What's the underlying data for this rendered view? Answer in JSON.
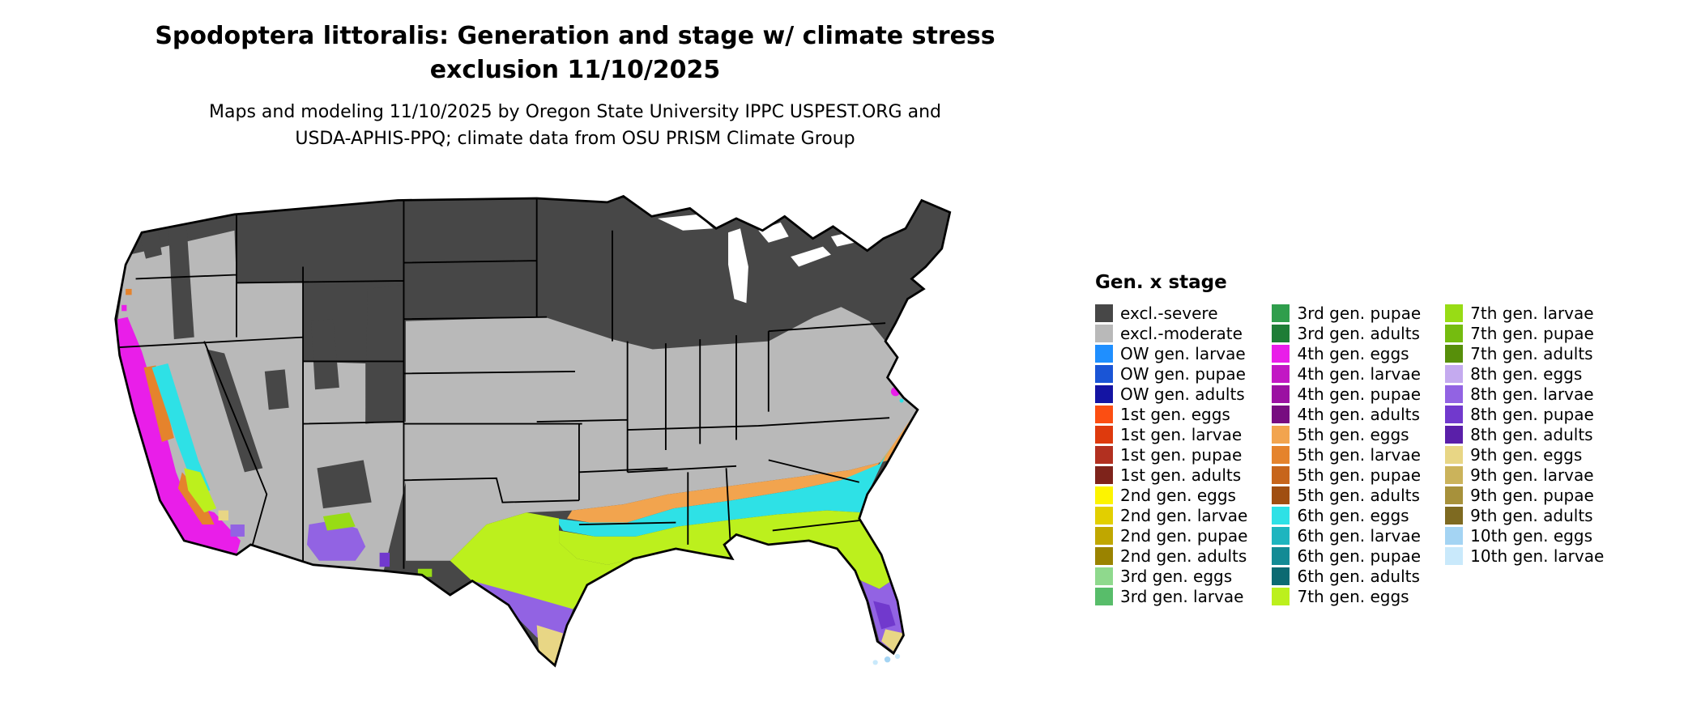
{
  "title": {
    "line1": "Spodoptera littoralis: Generation and stage w/ climate stress",
    "line2": "exclusion 11/10/2025"
  },
  "subtitle": {
    "line1": "Maps and modeling 11/10/2025 by Oregon State University IPPC USPEST.ORG and",
    "line2": "USDA-APHIS-PPQ; climate data from OSU PRISM Climate Group"
  },
  "legend": {
    "title": "Gen. x stage",
    "columns": [
      [
        {
          "label": "excl.-severe",
          "color": "excl_severe"
        },
        {
          "label": "excl.-moderate",
          "color": "excl_moderate"
        },
        {
          "label": "OW gen. larvae",
          "color": "ow_larvae"
        },
        {
          "label": "OW gen. pupae",
          "color": "ow_pupae"
        },
        {
          "label": "OW gen. adults",
          "color": "ow_adults"
        },
        {
          "label": "1st gen. eggs",
          "color": "g1_eggs"
        },
        {
          "label": "1st gen. larvae",
          "color": "g1_larvae"
        },
        {
          "label": "1st gen. pupae",
          "color": "g1_pupae"
        },
        {
          "label": "1st gen. adults",
          "color": "g1_adults"
        },
        {
          "label": "2nd gen. eggs",
          "color": "g2_eggs"
        },
        {
          "label": "2nd gen. larvae",
          "color": "g2_larvae"
        },
        {
          "label": "2nd gen. pupae",
          "color": "g2_pupae"
        },
        {
          "label": "2nd gen. adults",
          "color": "g2_adults"
        },
        {
          "label": "3rd gen. eggs",
          "color": "g3_eggs"
        },
        {
          "label": "3rd gen. larvae",
          "color": "g3_larvae"
        }
      ],
      [
        {
          "label": "3rd gen. pupae",
          "color": "g3_pupae"
        },
        {
          "label": "3rd gen. adults",
          "color": "g3_adults"
        },
        {
          "label": "4th gen. eggs",
          "color": "g4_eggs"
        },
        {
          "label": "4th gen. larvae",
          "color": "g4_larvae"
        },
        {
          "label": "4th gen. pupae",
          "color": "g4_pupae"
        },
        {
          "label": "4th gen. adults",
          "color": "g4_adults"
        },
        {
          "label": "5th gen. eggs",
          "color": "g5_eggs"
        },
        {
          "label": "5th gen. larvae",
          "color": "g5_larvae"
        },
        {
          "label": "5th gen. pupae",
          "color": "g5_pupae"
        },
        {
          "label": "5th gen. adults",
          "color": "g5_adults"
        },
        {
          "label": "6th gen. eggs",
          "color": "g6_eggs"
        },
        {
          "label": "6th gen. larvae",
          "color": "g6_larvae"
        },
        {
          "label": "6th gen. pupae",
          "color": "g6_pupae"
        },
        {
          "label": "6th gen. adults",
          "color": "g6_adults"
        },
        {
          "label": "7th gen. eggs",
          "color": "g7_eggs"
        }
      ],
      [
        {
          "label": "7th gen. larvae",
          "color": "g7_larvae"
        },
        {
          "label": "7th gen. pupae",
          "color": "g7_pupae"
        },
        {
          "label": "7th gen. adults",
          "color": "g7_adults"
        },
        {
          "label": "8th gen. eggs",
          "color": "g8_eggs"
        },
        {
          "label": "8th gen. larvae",
          "color": "g8_larvae"
        },
        {
          "label": "8th gen. pupae",
          "color": "g8_pupae"
        },
        {
          "label": "8th gen. adults",
          "color": "g8_adults"
        },
        {
          "label": "9th gen. eggs",
          "color": "g9_eggs"
        },
        {
          "label": "9th gen. larvae",
          "color": "g9_larvae"
        },
        {
          "label": "9th gen. pupae",
          "color": "g9_pupae"
        },
        {
          "label": "9th gen. adults",
          "color": "g9_adults"
        },
        {
          "label": "10th gen. eggs",
          "color": "g10_eggs"
        },
        {
          "label": "10th gen. larvae",
          "color": "g10_larvae"
        }
      ]
    ]
  },
  "colors": {
    "excl_severe": "#474747",
    "excl_moderate": "#b9b9b9",
    "ow_larvae": "#1f8fff",
    "ow_pupae": "#1a55d6",
    "ow_adults": "#1414a3",
    "g1_eggs": "#fc4e12",
    "g1_larvae": "#de3a0d",
    "g1_pupae": "#b23020",
    "g1_adults": "#7e231b",
    "g2_eggs": "#fdf400",
    "g2_larvae": "#e2cf00",
    "g2_pupae": "#c0a700",
    "g2_adults": "#9a8300",
    "g3_eggs": "#8fd98d",
    "g3_larvae": "#58bd6a",
    "g3_pupae": "#2f9e4c",
    "g3_adults": "#1e7d36",
    "g4_eggs": "#e91ee9",
    "g4_larvae": "#c217c4",
    "g4_pupae": "#9b11a2",
    "g4_adults": "#770d80",
    "g5_eggs": "#f2a44e",
    "g5_larvae": "#e5832c",
    "g5_pupae": "#c7651b",
    "g5_adults": "#a04e11",
    "g6_eggs": "#2ee1e6",
    "g6_larvae": "#1eb5bf",
    "g6_pupae": "#138b95",
    "g6_adults": "#0c6a72",
    "g7_eggs": "#bcf01d",
    "g7_larvae": "#98dc15",
    "g7_pupae": "#75bc0f",
    "g7_adults": "#578f0a",
    "g8_eggs": "#c4aaef",
    "g8_larvae": "#9263e3",
    "g8_pupae": "#7139cd",
    "g8_adults": "#5a1fa9",
    "g9_eggs": "#e8d685",
    "g9_larvae": "#cbb35b",
    "g9_pupae": "#a7913b",
    "g9_adults": "#7e6a21",
    "g10_eggs": "#a4d4f3",
    "g10_larvae": "#c9e9fb",
    "lake": "#ffffff",
    "border": "#000000"
  }
}
